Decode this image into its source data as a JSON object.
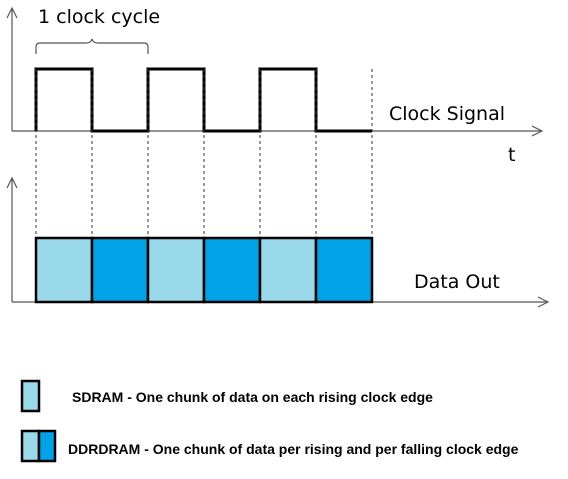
{
  "labels": {
    "cycle": "1 clock cycle",
    "clock_signal": "Clock Signal",
    "time_axis": "t",
    "data_out": "Data Out"
  },
  "clock": {
    "pulses": 3,
    "level_high": 1,
    "level_low": 0
  },
  "data_blocks": {
    "count": 6,
    "pattern": [
      "light",
      "dark",
      "light",
      "dark",
      "light",
      "dark"
    ]
  },
  "legend": [
    {
      "swatch": "single",
      "text": "SDRAM - One chunk of data on each rising clock edge"
    },
    {
      "swatch": "double",
      "text": "DDRDRAM - One chunk of data per rising and per falling clock edge"
    }
  ],
  "colors": {
    "light_fill": "#99D9EA",
    "dark_fill": "#00A2E8",
    "stroke": "#000000",
    "axis": "#555555",
    "guide": "#333333"
  }
}
